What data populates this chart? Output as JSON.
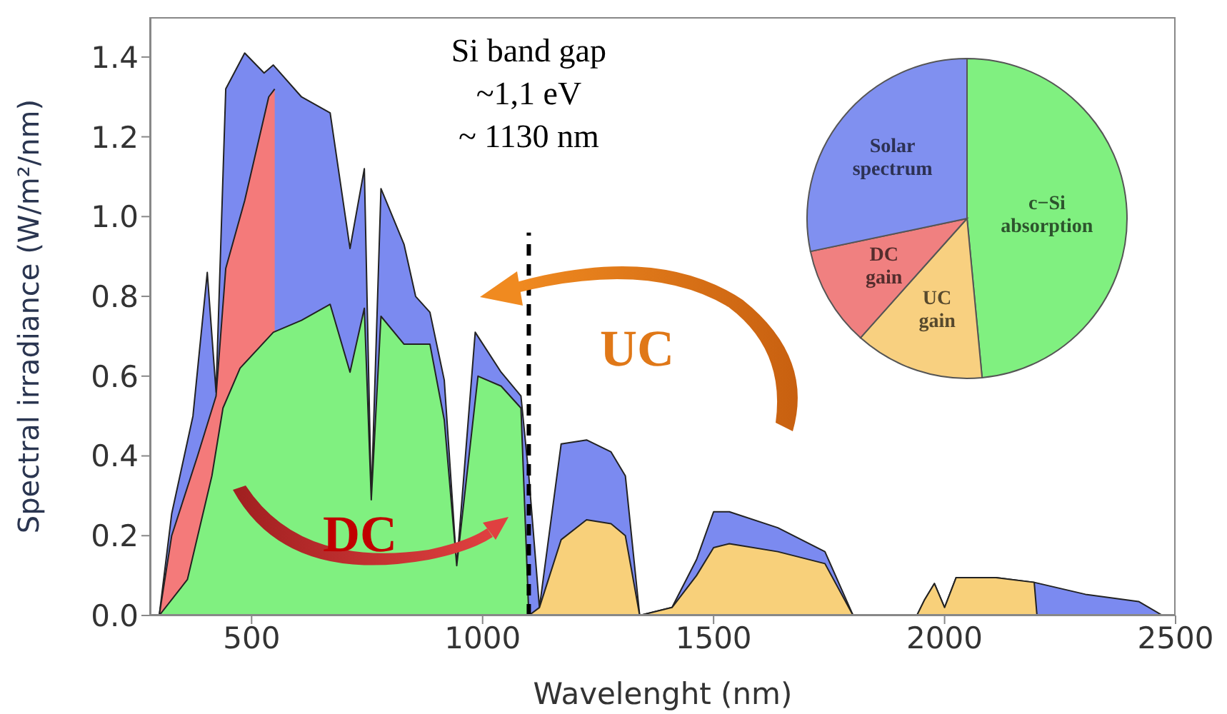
{
  "chart_data": [
    {
      "type": "area",
      "xlabel": "Wavelenght (nm)",
      "ylabel": "Spectral irradiance (W/m²/nm)",
      "xlim": [
        280,
        2500
      ],
      "ylim": [
        0,
        1.5
      ],
      "xticks": [
        500,
        1000,
        1500,
        2000,
        2500
      ],
      "yticks": [
        {
          "value": 0,
          "label": "0.0"
        },
        0.2,
        0.4,
        0.6,
        0.8,
        {
          "value": 1,
          "label": "1.0"
        },
        1.2,
        1.4
      ],
      "series": [
        {
          "color": "#7b8af0",
          "x": [
            300,
            327,
            373,
            404,
            423,
            444,
            485,
            527,
            547,
            608,
            670,
            713,
            744,
            759,
            780,
            830,
            855,
            886,
            917,
            944,
            984,
            1040,
            1083,
            1100,
            1123,
            1170,
            1225,
            1278,
            1309,
            1340,
            1410,
            1463,
            1500,
            1534,
            1639,
            1741,
            1802,
            1940,
            1957,
            1978,
            2000,
            2025,
            2111,
            2194,
            2305,
            2420,
            2472
          ],
          "values": [
            0,
            0.255,
            0.5,
            0.86,
            0.56,
            1.32,
            1.41,
            1.36,
            1.38,
            1.3,
            1.26,
            0.92,
            1.12,
            0.29,
            1.07,
            0.93,
            0.8,
            0.76,
            0.59,
            0.125,
            0.71,
            0.61,
            0.55,
            0.35,
            0.02,
            0.43,
            0.44,
            0.41,
            0.35,
            0,
            0.02,
            0.14,
            0.26,
            0.26,
            0.22,
            0.16,
            0,
            0,
            0.04,
            0.08,
            0.02,
            0.095,
            0.095,
            0.083,
            0.053,
            0.035,
            0
          ]
        },
        {
          "color": "#f47a7a",
          "x": [
            300,
            327,
            383,
            423,
            444,
            485,
            537,
            550
          ],
          "values": [
            0,
            0.2,
            0.4,
            0.55,
            0.87,
            1.04,
            1.3,
            1.32
          ]
        },
        {
          "color": "#80f080",
          "x": [
            300,
            361,
            414,
            438,
            475,
            547,
            608,
            670,
            713,
            744,
            759,
            780,
            830,
            886,
            917,
            944,
            990,
            1040,
            1083,
            1100
          ],
          "values": [
            0,
            0.09,
            0.35,
            0.52,
            0.62,
            0.71,
            0.74,
            0.78,
            0.61,
            0.77,
            0.29,
            0.75,
            0.68,
            0.68,
            0.49,
            0.125,
            0.6,
            0.575,
            0.52,
            0
          ]
        },
        {
          "color": "#f8d07a",
          "x": [
            1100,
            1123,
            1170,
            1225,
            1278,
            1309,
            1340,
            1410,
            1463,
            1500,
            1534,
            1639,
            1741,
            1802,
            1940,
            1957,
            1978,
            2000,
            2025,
            2111,
            2194,
            2200
          ],
          "values": [
            0,
            0.02,
            0.19,
            0.24,
            0.23,
            0.2,
            0,
            0.02,
            0.1,
            0.17,
            0.18,
            0.16,
            0.13,
            0,
            0,
            0.04,
            0.08,
            0.02,
            0.095,
            0.095,
            0.083,
            0
          ]
        }
      ],
      "ref_lines": [
        {
          "axis": "x",
          "value": 1100,
          "label": "Si band gap\n~1,1 eV\n~ 1130 nm",
          "color": "#000000",
          "line_style": "dashed"
        }
      ],
      "annotations": [
        "DC",
        "UC"
      ]
    },
    {
      "type": "pie",
      "categories": [
        "c−Si absorption",
        "UC gain",
        "DC gain",
        "Solar spectrum"
      ],
      "values": [
        48.5,
        13.1,
        10.1,
        28.3
      ],
      "colors": [
        "#80f080",
        "#f8d080",
        "#f08080",
        "#8090f0"
      ]
    }
  ]
}
